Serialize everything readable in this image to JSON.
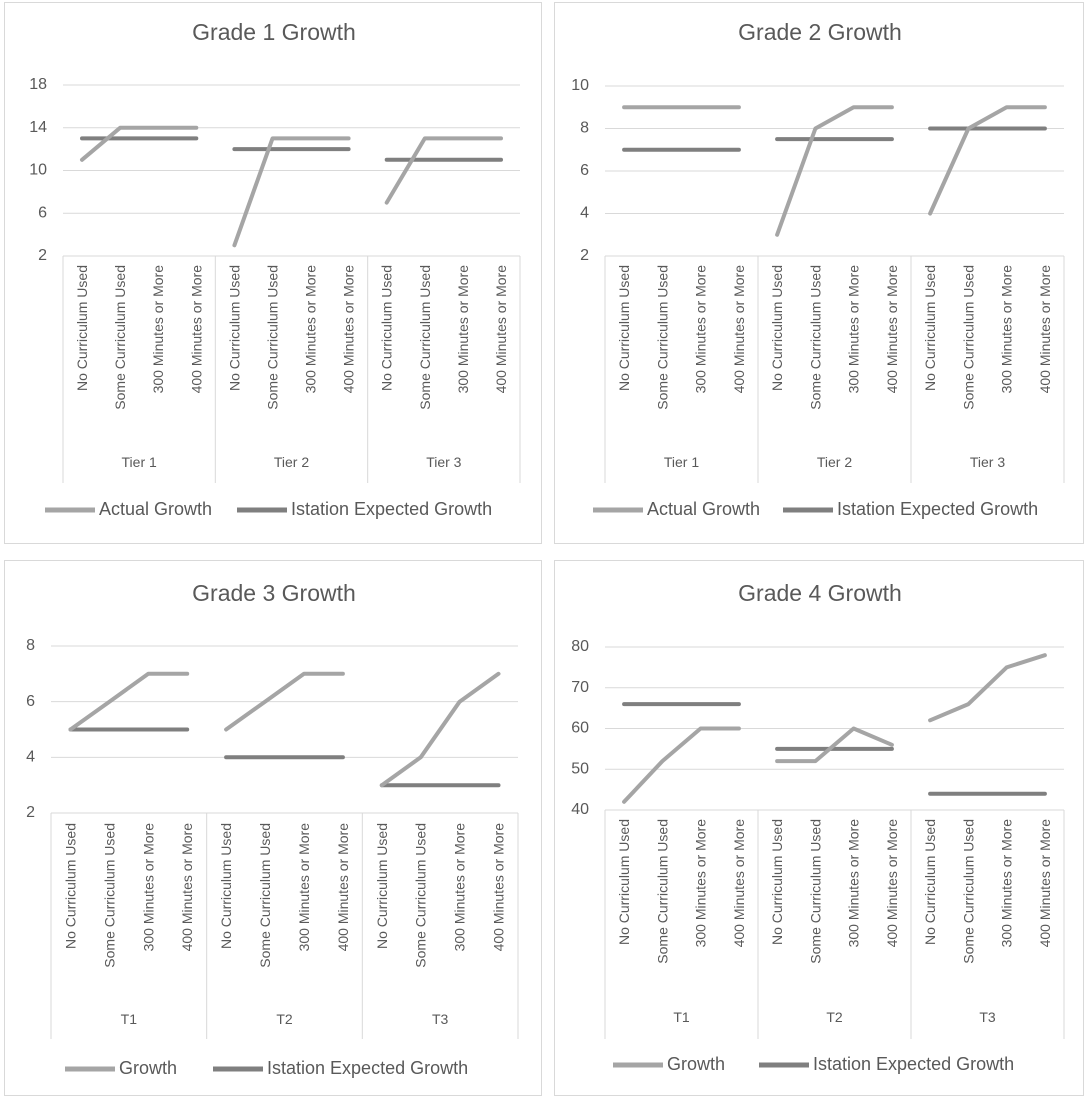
{
  "chart_data": [
    {
      "type": "line",
      "title": "Grade 1 Growth",
      "ylim": [
        2,
        18
      ],
      "yticks": [
        2,
        6,
        10,
        14,
        18
      ],
      "grid": true,
      "legend_position": "bottom",
      "groups": [
        {
          "label": "Tier 1",
          "categories": [
            "No Curriculum Used",
            "Some Curriculum Used",
            "300 Minutes or More",
            "400 Minutes or More"
          ]
        },
        {
          "label": "Tier 2",
          "categories": [
            "No Curriculum Used",
            "Some Curriculum Used",
            "300 Minutes or More",
            "400 Minutes or More"
          ]
        },
        {
          "label": "Tier 3",
          "categories": [
            "No Curriculum Used",
            "Some Curriculum Used",
            "300 Minutes or More",
            "400 Minutes or More"
          ]
        }
      ],
      "series": [
        {
          "name": "Actual Growth",
          "color": "#a5a5a5",
          "values": [
            [
              11,
              14,
              14,
              14
            ],
            [
              3,
              13,
              13,
              13
            ],
            [
              7,
              13,
              13,
              13
            ]
          ]
        },
        {
          "name": "Istation Expected Growth",
          "color": "#7f7f7f",
          "values": [
            [
              13,
              13,
              13,
              13
            ],
            [
              12,
              12,
              12,
              12
            ],
            [
              11,
              11,
              11,
              11
            ]
          ]
        }
      ]
    },
    {
      "type": "line",
      "title": "Grade 2 Growth",
      "ylim": [
        2,
        10
      ],
      "yticks": [
        2,
        4,
        6,
        8,
        10
      ],
      "grid": true,
      "legend_position": "bottom",
      "groups": [
        {
          "label": "Tier 1",
          "categories": [
            "No Curriculum Used",
            "Some Curriculum Used",
            "300 Minutes or More",
            "400 Minutes or More"
          ]
        },
        {
          "label": "Tier 2",
          "categories": [
            "No Curriculum Used",
            "Some Curriculum Used",
            "300 Minutes or More",
            "400 Minutes or More"
          ]
        },
        {
          "label": "Tier 3",
          "categories": [
            "No Curriculum Used",
            "Some Curriculum Used",
            "300 Minutes or More",
            "400 Minutes or More"
          ]
        }
      ],
      "series": [
        {
          "name": "Actual Growth",
          "color": "#a5a5a5",
          "values": [
            [
              9,
              9,
              9,
              9
            ],
            [
              3,
              8,
              9,
              9
            ],
            [
              4,
              8,
              9,
              9
            ]
          ]
        },
        {
          "name": "Istation Expected Growth",
          "color": "#7f7f7f",
          "values": [
            [
              7,
              7,
              7,
              7
            ],
            [
              7.5,
              7.5,
              7.5,
              7.5
            ],
            [
              8,
              8,
              8,
              8
            ]
          ]
        }
      ]
    },
    {
      "type": "line",
      "title": "Grade 3 Growth",
      "ylim": [
        2,
        8
      ],
      "yticks": [
        2,
        4,
        6,
        8
      ],
      "grid": true,
      "legend_position": "bottom",
      "groups": [
        {
          "label": "T1",
          "categories": [
            "No Curriculum Used",
            "Some Curriculum Used",
            "300 Minutes or More",
            "400 Minutes or More"
          ]
        },
        {
          "label": "T2",
          "categories": [
            "No Curriculum Used",
            "Some Curriculum Used",
            "300 Minutes or More",
            "400 Minutes or More"
          ]
        },
        {
          "label": "T3",
          "categories": [
            "No Curriculum Used",
            "Some Curriculum Used",
            "300 Minutes or More",
            "400 Minutes or More"
          ]
        }
      ],
      "series": [
        {
          "name": "Growth",
          "color": "#a5a5a5",
          "values": [
            [
              5,
              6,
              7,
              7
            ],
            [
              5,
              6,
              7,
              7
            ],
            [
              3,
              4,
              6,
              7
            ]
          ]
        },
        {
          "name": "Istation Expected Growth",
          "color": "#7f7f7f",
          "values": [
            [
              5,
              5,
              5,
              5
            ],
            [
              4,
              4,
              4,
              4
            ],
            [
              3,
              3,
              3,
              3
            ]
          ]
        }
      ]
    },
    {
      "type": "line",
      "title": "Grade 4 Growth",
      "ylim": [
        40,
        80
      ],
      "yticks": [
        40,
        50,
        60,
        70,
        80
      ],
      "grid": true,
      "legend_position": "bottom",
      "groups": [
        {
          "label": "T1",
          "categories": [
            "No Curriculum Used",
            "Some Curriculum Used",
            "300 Minutes or More",
            "400 Minutes or More"
          ]
        },
        {
          "label": "T2",
          "categories": [
            "No Curriculum Used",
            "Some Curriculum Used",
            "300 Minutes or More",
            "400 Minutes or More"
          ]
        },
        {
          "label": "T3",
          "categories": [
            "No Curriculum Used",
            "Some Curriculum Used",
            "300 Minutes or More",
            "400 Minutes or More"
          ]
        }
      ],
      "series": [
        {
          "name": "Growth",
          "color": "#a5a5a5",
          "values": [
            [
              42,
              52,
              60,
              60
            ],
            [
              52,
              52,
              60,
              56
            ],
            [
              62,
              66,
              75,
              78
            ]
          ]
        },
        {
          "name": "Istation Expected Growth",
          "color": "#7f7f7f",
          "values": [
            [
              66,
              66,
              66,
              66
            ],
            [
              55,
              55,
              55,
              55
            ],
            [
              44,
              44,
              44,
              44
            ]
          ]
        }
      ]
    }
  ]
}
